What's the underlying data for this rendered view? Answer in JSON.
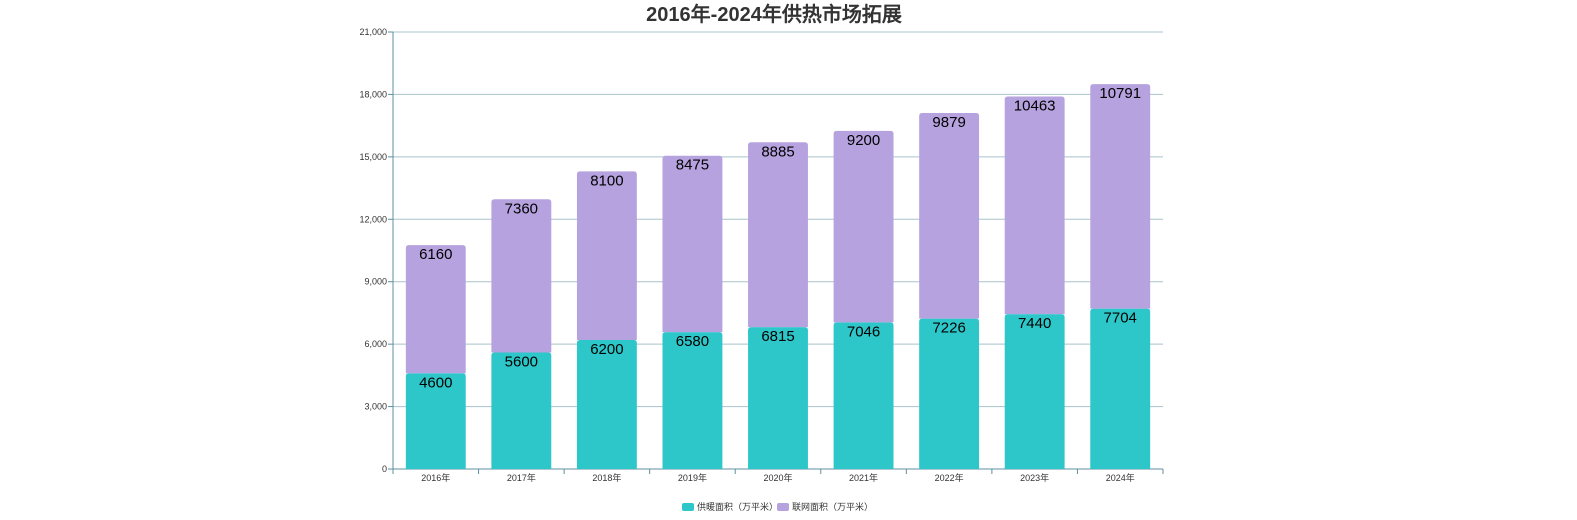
{
  "chart_data": {
    "type": "bar",
    "stacked": true,
    "title": "2016年-2024年供热市场拓展",
    "categories": [
      "2016年",
      "2017年",
      "2018年",
      "2019年",
      "2020年",
      "2021年",
      "2022年",
      "2023年",
      "2024年"
    ],
    "series": [
      {
        "name": "供暖面积（万平米）",
        "color": "#2ec7c9",
        "values": [
          4600,
          5600,
          6200,
          6580,
          6815,
          7046,
          7226,
          7440,
          7704
        ]
      },
      {
        "name": "联网面积（万平米）",
        "color": "#b6a2de",
        "values": [
          6160,
          7360,
          8100,
          8475,
          8885,
          9200,
          9879,
          10463,
          10791
        ]
      }
    ],
    "ylim": [
      0,
      21000
    ],
    "yticks": [
      0,
      3000,
      6000,
      9000,
      12000,
      15000,
      18000,
      21000
    ],
    "ytick_labels": [
      "0",
      "3,000",
      "6,000",
      "9,000",
      "12,000",
      "15,000",
      "18,000",
      "21,000"
    ],
    "grid": true,
    "legend_position": "bottom-center",
    "colors": {
      "axis": "#5d8fa0",
      "grid": "#a9c3cc"
    }
  }
}
